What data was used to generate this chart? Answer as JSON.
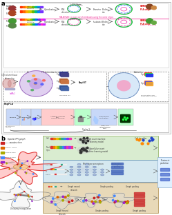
{
  "fig_width": 2.49,
  "fig_height": 3.12,
  "dpi": 100,
  "bg_color": "#ffffff",
  "panel_a_label": "a",
  "panel_b_label": "b",
  "top_box_bg": "#fafafa",
  "top_box_border": "#bbbbbb",
  "green_box_bg": "#d9ecd0",
  "blue_box_bg": "#d5e8f0",
  "tan_box_bg": "#e8d9b8",
  "pink_text": "#ee1188",
  "red_text": "#dd0000",
  "magenta_color": "#cc00cc",
  "bar_colors_top": [
    "#ff3300",
    "#ff6600",
    "#ffaa00",
    "#cccc00",
    "#66bb00",
    "#00bb88",
    "#0088ff",
    "#7733ff"
  ],
  "bar_colors_mid": [
    "#ff2222",
    "#ff5500",
    "#ff9900",
    "#ddcc00",
    "#88bb00",
    "#00aa66",
    "#0066ff",
    "#8822ff",
    "#ff22cc",
    "#cc22ff"
  ],
  "rapiht": "RapiHT",
  "rapla": "RapPLA",
  "legend_b_colors": [
    "#cc2222",
    "#dd6600",
    "#aaaa00",
    "#4488ff",
    "#9922cc"
  ],
  "legend_b_labels": [
    "ROI1 to SAR",
    "SubCell ROIR1",
    "c-SRC R-ROI2",
    "c-SRC R-ROI3",
    "ROI7 bcHub"
  ],
  "green_row1_colors": [
    "#dd3333",
    "#ee7700",
    "#eebb00",
    "#88bb00",
    "#33aa88",
    "#3388ee",
    "#8833ee",
    "#ee33aa"
  ],
  "green_row2_colors": [
    "#dd3333",
    "#ee7700",
    "#eebb00",
    "#88bb00",
    "#33aa88",
    "#3388ee",
    "#8833ee",
    "#ee33aa",
    "#aa33ee",
    "#ee3388"
  ],
  "blue_input_row_colors": [
    [
      "#dd3333",
      "#eeeeee",
      "#eeeeee",
      "#eeeeee",
      "#eeeeee",
      "#33aa88",
      "#eeeeee",
      "#eeeeee"
    ],
    [
      "#dd3333",
      "#eebb00",
      "#33aa88",
      "#eeeeee",
      "#eeeeee",
      "#eeeeee",
      "#eeeeee",
      "#eeeeee"
    ],
    [
      "#eeeeee",
      "#eeeeee",
      "#dd3333",
      "#eeeeee",
      "#eeeeee",
      "#eeeeee",
      "#eeeeee",
      "#eeeeee"
    ]
  ],
  "output_bar_colors_blue": [
    "#5577cc",
    "#5577cc",
    "#5577cc",
    "#5577cc"
  ],
  "output_bar_colors_red": [
    "#cc4444",
    "#cc4444",
    "#cc4444",
    "#cc4444",
    "#cc4444"
  ]
}
